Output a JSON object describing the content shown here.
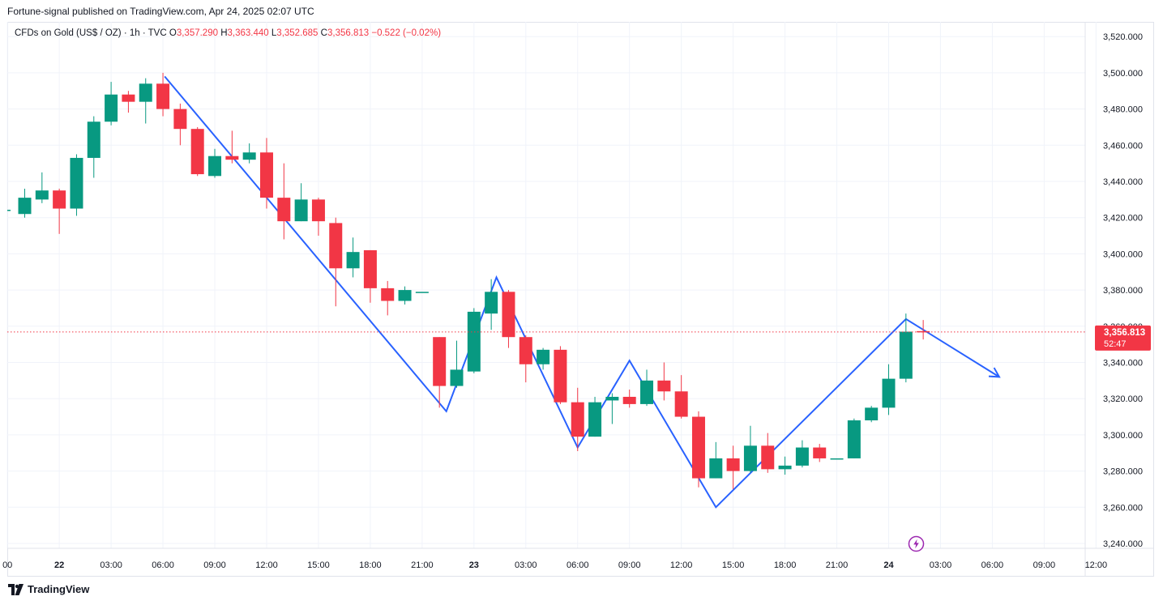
{
  "header": {
    "published": "Fortune-signal published on TradingView.com, Apr 24, 2025 02:07 UTC"
  },
  "legend": {
    "symbol": "CFDs on Gold (US$ / OZ) · 1h · TVC",
    "o_label": "O",
    "o_value": "3,357.290",
    "h_label": "H",
    "h_value": "3,363.440",
    "l_label": "L",
    "l_value": "3,352.685",
    "c_label": "C",
    "c_value": "3,356.813",
    "change": "−0.522 (−0.02%)"
  },
  "price_tag": {
    "price": "3,356.813",
    "countdown": "52:47"
  },
  "footer": {
    "brand": "TradingView"
  },
  "colors": {
    "up": "#089981",
    "down": "#f23645",
    "drawing": "#2962ff",
    "grid": "#f0f3fa",
    "bolt": "#9c27b0"
  },
  "icons": {
    "brand": "tradingview-logo-icon",
    "event": "lightning-bolt-icon"
  },
  "chart_data": {
    "type": "candlestick",
    "ylim": [
      3230,
      3530
    ],
    "y_ticks": [
      3240,
      3260,
      3280,
      3300,
      3320,
      3340,
      3360,
      3380,
      3400,
      3420,
      3440,
      3460,
      3480,
      3500,
      3520
    ],
    "y_tick_labels": [
      "3,240.000",
      "3,260.000",
      "3,280.000",
      "3,300.000",
      "3,320.000",
      "3,340.000",
      "3,360.000",
      "3,380.000",
      "3,400.000",
      "3,420.000",
      "3,440.000",
      "3,460.000",
      "3,480.000",
      "3,500.000",
      "3,520.000"
    ],
    "x_ticks": [
      {
        "i": -1,
        "label": "00",
        "bold": false
      },
      {
        "i": 2,
        "label": "22",
        "bold": true
      },
      {
        "i": 5,
        "label": "03:00",
        "bold": false
      },
      {
        "i": 8,
        "label": "06:00",
        "bold": false
      },
      {
        "i": 11,
        "label": "09:00",
        "bold": false
      },
      {
        "i": 14,
        "label": "12:00",
        "bold": false
      },
      {
        "i": 17,
        "label": "15:00",
        "bold": false
      },
      {
        "i": 20,
        "label": "18:00",
        "bold": false
      },
      {
        "i": 23,
        "label": "21:00",
        "bold": false
      },
      {
        "i": 26,
        "label": "23",
        "bold": true
      },
      {
        "i": 29,
        "label": "03:00",
        "bold": false
      },
      {
        "i": 32,
        "label": "06:00",
        "bold": false
      },
      {
        "i": 35,
        "label": "09:00",
        "bold": false
      },
      {
        "i": 38,
        "label": "12:00",
        "bold": false
      },
      {
        "i": 41,
        "label": "15:00",
        "bold": false
      },
      {
        "i": 44,
        "label": "18:00",
        "bold": false
      },
      {
        "i": 47,
        "label": "21:00",
        "bold": false
      },
      {
        "i": 50,
        "label": "24",
        "bold": true
      },
      {
        "i": 53,
        "label": "03:00",
        "bold": false
      },
      {
        "i": 56,
        "label": "06:00",
        "bold": false
      },
      {
        "i": 59,
        "label": "09:00",
        "bold": false
      },
      {
        "i": 62,
        "label": "12:00",
        "bold": false
      }
    ],
    "candles": [
      {
        "o": 3422,
        "h": 3436,
        "l": 3420,
        "c": 3431
      },
      {
        "o": 3430,
        "h": 3445,
        "l": 3428,
        "c": 3435
      },
      {
        "o": 3435,
        "h": 3436,
        "l": 3411,
        "c": 3425
      },
      {
        "o": 3425,
        "h": 3455,
        "l": 3421,
        "c": 3453
      },
      {
        "o": 3453,
        "h": 3476,
        "l": 3442,
        "c": 3473
      },
      {
        "o": 3473,
        "h": 3495,
        "l": 3471,
        "c": 3488
      },
      {
        "o": 3488,
        "h": 3490,
        "l": 3478,
        "c": 3484
      },
      {
        "o": 3484,
        "h": 3497,
        "l": 3472,
        "c": 3494
      },
      {
        "o": 3494,
        "h": 3500,
        "l": 3476,
        "c": 3480
      },
      {
        "o": 3480,
        "h": 3483,
        "l": 3460,
        "c": 3469
      },
      {
        "o": 3469,
        "h": 3470,
        "l": 3443,
        "c": 3444
      },
      {
        "o": 3443,
        "h": 3458,
        "l": 3442,
        "c": 3454
      },
      {
        "o": 3454,
        "h": 3468,
        "l": 3450,
        "c": 3452
      },
      {
        "o": 3452,
        "h": 3461,
        "l": 3450,
        "c": 3456
      },
      {
        "o": 3456,
        "h": 3464,
        "l": 3425,
        "c": 3431
      },
      {
        "o": 3431,
        "h": 3450,
        "l": 3408,
        "c": 3418
      },
      {
        "o": 3418,
        "h": 3439,
        "l": 3418,
        "c": 3430
      },
      {
        "o": 3430,
        "h": 3431,
        "l": 3410,
        "c": 3418
      },
      {
        "o": 3417,
        "h": 3420,
        "l": 3371,
        "c": 3392
      },
      {
        "o": 3392,
        "h": 3409,
        "l": 3387,
        "c": 3401
      },
      {
        "o": 3402,
        "h": 3402,
        "l": 3373,
        "c": 3381
      },
      {
        "o": 3381,
        "h": 3385,
        "l": 3366,
        "c": 3374
      },
      {
        "o": 3374,
        "h": 3382,
        "l": 3372,
        "c": 3380
      },
      {
        "o": 3379,
        "h": 3379,
        "l": 3379,
        "c": 3379
      },
      {
        "o": 3354,
        "h": 3354,
        "l": 3315,
        "c": 3327
      },
      {
        "o": 3327,
        "h": 3352,
        "l": 3326,
        "c": 3336
      },
      {
        "o": 3335,
        "h": 3370,
        "l": 3334,
        "c": 3368
      },
      {
        "o": 3367,
        "h": 3386,
        "l": 3358,
        "c": 3379
      },
      {
        "o": 3379,
        "h": 3380,
        "l": 3348,
        "c": 3354
      },
      {
        "o": 3354,
        "h": 3355,
        "l": 3329,
        "c": 3339
      },
      {
        "o": 3339,
        "h": 3348,
        "l": 3336,
        "c": 3347
      },
      {
        "o": 3347,
        "h": 3349,
        "l": 3317,
        "c": 3318
      },
      {
        "o": 3318,
        "h": 3326,
        "l": 3291,
        "c": 3299
      },
      {
        "o": 3299,
        "h": 3321,
        "l": 3299,
        "c": 3318
      },
      {
        "o": 3319,
        "h": 3323,
        "l": 3306,
        "c": 3321
      },
      {
        "o": 3321,
        "h": 3325,
        "l": 3315,
        "c": 3317
      },
      {
        "o": 3317,
        "h": 3336,
        "l": 3316,
        "c": 3330
      },
      {
        "o": 3330,
        "h": 3340,
        "l": 3319,
        "c": 3324
      },
      {
        "o": 3324,
        "h": 3333,
        "l": 3309,
        "c": 3310
      },
      {
        "o": 3310,
        "h": 3313,
        "l": 3271,
        "c": 3276
      },
      {
        "o": 3276,
        "h": 3296,
        "l": 3276,
        "c": 3287
      },
      {
        "o": 3287,
        "h": 3294,
        "l": 3270,
        "c": 3280
      },
      {
        "o": 3280,
        "h": 3305,
        "l": 3279,
        "c": 3294
      },
      {
        "o": 3294,
        "h": 3301,
        "l": 3279,
        "c": 3281
      },
      {
        "o": 3281,
        "h": 3288,
        "l": 3278,
        "c": 3283
      },
      {
        "o": 3283,
        "h": 3297,
        "l": 3282,
        "c": 3293
      },
      {
        "o": 3293,
        "h": 3295,
        "l": 3285,
        "c": 3287
      },
      {
        "o": 3287,
        "h": 3287,
        "l": 3287,
        "c": 3287
      },
      {
        "o": 3287,
        "h": 3309,
        "l": 3287,
        "c": 3308
      },
      {
        "o": 3308,
        "h": 3316,
        "l": 3307,
        "c": 3315
      },
      {
        "o": 3315,
        "h": 3339,
        "l": 3311,
        "c": 3331
      },
      {
        "o": 3331,
        "h": 3367,
        "l": 3329,
        "c": 3357
      },
      {
        "o": 3357.29,
        "h": 3363.44,
        "l": 3352.685,
        "c": 3356.813
      }
    ],
    "last_price": 3356.813,
    "drawing": {
      "type": "polyline-arrow",
      "points": [
        {
          "i": 8.1,
          "p": 3498
        },
        {
          "i": 24.4,
          "p": 3313
        },
        {
          "i": 27.3,
          "p": 3387
        },
        {
          "i": 32.0,
          "p": 3293
        },
        {
          "i": 35.0,
          "p": 3341
        },
        {
          "i": 40.0,
          "p": 3260
        },
        {
          "i": 51.0,
          "p": 3364
        },
        {
          "i": 56.4,
          "p": 3332
        }
      ]
    }
  }
}
